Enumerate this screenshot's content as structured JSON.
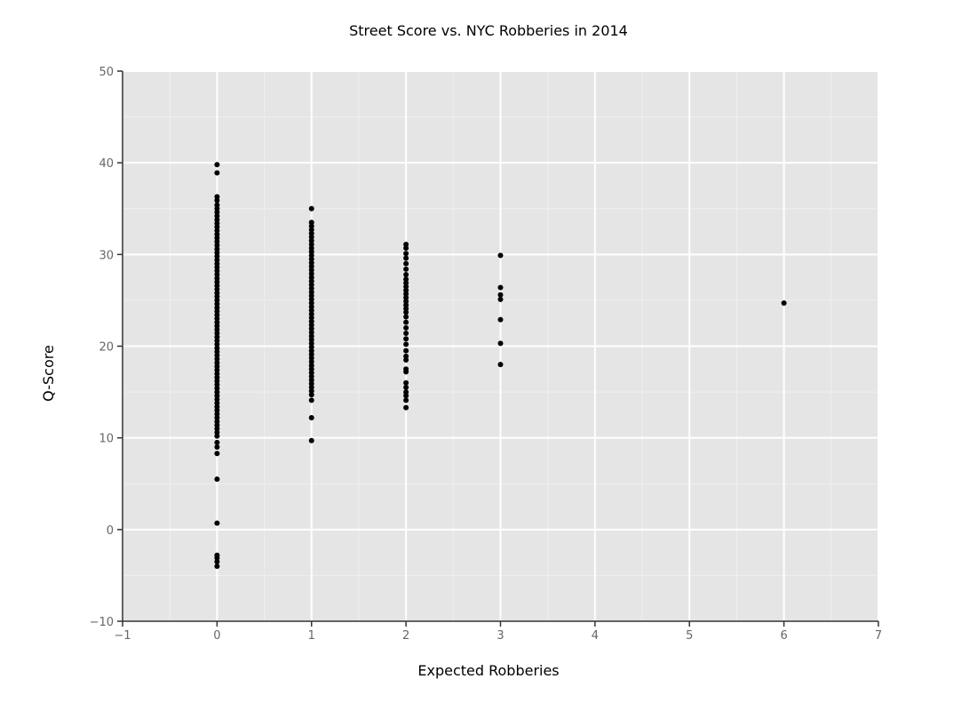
{
  "chart_data": {
    "type": "scatter",
    "title": "Street Score vs. NYC Robberies in 2014",
    "xlabel": "Expected Robberies",
    "ylabel": "Q-Score",
    "xlim": [
      -1,
      7
    ],
    "ylim": [
      -10,
      50
    ],
    "x_ticks": [
      -1,
      0,
      1,
      2,
      3,
      4,
      5,
      6,
      7
    ],
    "y_ticks": [
      -10,
      0,
      10,
      20,
      30,
      40,
      50
    ],
    "x_tick_labels": [
      "−1",
      "0",
      "1",
      "2",
      "3",
      "4",
      "5",
      "6",
      "7"
    ],
    "y_tick_labels": [
      "−10",
      "0",
      "10",
      "20",
      "30",
      "40",
      "50"
    ],
    "grid": true,
    "point_color": "#000000",
    "panel_color": "#e5e5e5",
    "points": [
      {
        "x": 0,
        "y": 39.8
      },
      {
        "x": 0,
        "y": 38.9
      },
      {
        "x": 0,
        "y": 36.3
      },
      {
        "x": 0,
        "y": 35.9
      },
      {
        "x": 0,
        "y": 35.4
      },
      {
        "x": 0,
        "y": 35.0
      },
      {
        "x": 0,
        "y": 34.6
      },
      {
        "x": 0,
        "y": 34.2
      },
      {
        "x": 0,
        "y": 33.8
      },
      {
        "x": 0,
        "y": 33.4
      },
      {
        "x": 0,
        "y": 33.0
      },
      {
        "x": 0,
        "y": 32.6
      },
      {
        "x": 0,
        "y": 32.2
      },
      {
        "x": 0,
        "y": 31.8
      },
      {
        "x": 0,
        "y": 31.4
      },
      {
        "x": 0,
        "y": 31.0
      },
      {
        "x": 0,
        "y": 30.6
      },
      {
        "x": 0,
        "y": 30.2
      },
      {
        "x": 0,
        "y": 29.8
      },
      {
        "x": 0,
        "y": 29.4
      },
      {
        "x": 0,
        "y": 29.0
      },
      {
        "x": 0,
        "y": 28.6
      },
      {
        "x": 0,
        "y": 28.2
      },
      {
        "x": 0,
        "y": 27.8
      },
      {
        "x": 0,
        "y": 27.4
      },
      {
        "x": 0,
        "y": 27.0
      },
      {
        "x": 0,
        "y": 26.6
      },
      {
        "x": 0,
        "y": 26.2
      },
      {
        "x": 0,
        "y": 25.8
      },
      {
        "x": 0,
        "y": 25.4
      },
      {
        "x": 0,
        "y": 25.0
      },
      {
        "x": 0,
        "y": 24.6
      },
      {
        "x": 0,
        "y": 24.2
      },
      {
        "x": 0,
        "y": 23.8
      },
      {
        "x": 0,
        "y": 23.4
      },
      {
        "x": 0,
        "y": 23.0
      },
      {
        "x": 0,
        "y": 22.6
      },
      {
        "x": 0,
        "y": 22.2
      },
      {
        "x": 0,
        "y": 21.8
      },
      {
        "x": 0,
        "y": 21.4
      },
      {
        "x": 0,
        "y": 21.0
      },
      {
        "x": 0,
        "y": 20.6
      },
      {
        "x": 0,
        "y": 20.2
      },
      {
        "x": 0,
        "y": 19.8
      },
      {
        "x": 0,
        "y": 19.4
      },
      {
        "x": 0,
        "y": 19.0
      },
      {
        "x": 0,
        "y": 18.6
      },
      {
        "x": 0,
        "y": 18.2
      },
      {
        "x": 0,
        "y": 17.8
      },
      {
        "x": 0,
        "y": 17.4
      },
      {
        "x": 0,
        "y": 17.0
      },
      {
        "x": 0,
        "y": 16.6
      },
      {
        "x": 0,
        "y": 16.2
      },
      {
        "x": 0,
        "y": 15.8
      },
      {
        "x": 0,
        "y": 15.4
      },
      {
        "x": 0,
        "y": 15.0
      },
      {
        "x": 0,
        "y": 14.6
      },
      {
        "x": 0,
        "y": 14.2
      },
      {
        "x": 0,
        "y": 13.8
      },
      {
        "x": 0,
        "y": 13.4
      },
      {
        "x": 0,
        "y": 13.0
      },
      {
        "x": 0,
        "y": 12.6
      },
      {
        "x": 0,
        "y": 12.2
      },
      {
        "x": 0,
        "y": 11.8
      },
      {
        "x": 0,
        "y": 11.4
      },
      {
        "x": 0,
        "y": 11.0
      },
      {
        "x": 0,
        "y": 10.6
      },
      {
        "x": 0,
        "y": 10.2
      },
      {
        "x": 0,
        "y": 9.5
      },
      {
        "x": 0,
        "y": 9.0
      },
      {
        "x": 0,
        "y": 8.3
      },
      {
        "x": 0,
        "y": 5.5
      },
      {
        "x": 0,
        "y": 0.7
      },
      {
        "x": 0,
        "y": -2.8
      },
      {
        "x": 0,
        "y": -3.1
      },
      {
        "x": 0,
        "y": -3.5
      },
      {
        "x": 0,
        "y": -4.0
      },
      {
        "x": 1,
        "y": 35.0
      },
      {
        "x": 1,
        "y": 33.5
      },
      {
        "x": 1,
        "y": 33.1
      },
      {
        "x": 1,
        "y": 32.7
      },
      {
        "x": 1,
        "y": 32.3
      },
      {
        "x": 1,
        "y": 31.9
      },
      {
        "x": 1,
        "y": 31.5
      },
      {
        "x": 1,
        "y": 31.1
      },
      {
        "x": 1,
        "y": 30.7
      },
      {
        "x": 1,
        "y": 30.3
      },
      {
        "x": 1,
        "y": 29.9
      },
      {
        "x": 1,
        "y": 29.5
      },
      {
        "x": 1,
        "y": 29.1
      },
      {
        "x": 1,
        "y": 28.7
      },
      {
        "x": 1,
        "y": 28.3
      },
      {
        "x": 1,
        "y": 27.9
      },
      {
        "x": 1,
        "y": 27.5
      },
      {
        "x": 1,
        "y": 27.1
      },
      {
        "x": 1,
        "y": 26.7
      },
      {
        "x": 1,
        "y": 26.3
      },
      {
        "x": 1,
        "y": 25.9
      },
      {
        "x": 1,
        "y": 25.5
      },
      {
        "x": 1,
        "y": 25.1
      },
      {
        "x": 1,
        "y": 24.7
      },
      {
        "x": 1,
        "y": 24.3
      },
      {
        "x": 1,
        "y": 23.9
      },
      {
        "x": 1,
        "y": 23.5
      },
      {
        "x": 1,
        "y": 23.1
      },
      {
        "x": 1,
        "y": 22.7
      },
      {
        "x": 1,
        "y": 22.3
      },
      {
        "x": 1,
        "y": 21.9
      },
      {
        "x": 1,
        "y": 21.5
      },
      {
        "x": 1,
        "y": 21.1
      },
      {
        "x": 1,
        "y": 20.7
      },
      {
        "x": 1,
        "y": 20.3
      },
      {
        "x": 1,
        "y": 19.9
      },
      {
        "x": 1,
        "y": 19.5
      },
      {
        "x": 1,
        "y": 19.1
      },
      {
        "x": 1,
        "y": 18.7
      },
      {
        "x": 1,
        "y": 18.3
      },
      {
        "x": 1,
        "y": 17.9
      },
      {
        "x": 1,
        "y": 17.5
      },
      {
        "x": 1,
        "y": 17.1
      },
      {
        "x": 1,
        "y": 16.7
      },
      {
        "x": 1,
        "y": 16.3
      },
      {
        "x": 1,
        "y": 15.9
      },
      {
        "x": 1,
        "y": 15.5
      },
      {
        "x": 1,
        "y": 15.1
      },
      {
        "x": 1,
        "y": 14.7
      },
      {
        "x": 1,
        "y": 14.1
      },
      {
        "x": 1,
        "y": 12.2
      },
      {
        "x": 1,
        "y": 9.7
      },
      {
        "x": 2,
        "y": 31.1
      },
      {
        "x": 2,
        "y": 30.7
      },
      {
        "x": 2,
        "y": 30.1
      },
      {
        "x": 2,
        "y": 29.6
      },
      {
        "x": 2,
        "y": 29.0
      },
      {
        "x": 2,
        "y": 28.4
      },
      {
        "x": 2,
        "y": 27.8
      },
      {
        "x": 2,
        "y": 27.3
      },
      {
        "x": 2,
        "y": 26.9
      },
      {
        "x": 2,
        "y": 26.5
      },
      {
        "x": 2,
        "y": 26.1
      },
      {
        "x": 2,
        "y": 25.7
      },
      {
        "x": 2,
        "y": 25.3
      },
      {
        "x": 2,
        "y": 24.9
      },
      {
        "x": 2,
        "y": 24.5
      },
      {
        "x": 2,
        "y": 24.1
      },
      {
        "x": 2,
        "y": 23.7
      },
      {
        "x": 2,
        "y": 23.2
      },
      {
        "x": 2,
        "y": 22.6
      },
      {
        "x": 2,
        "y": 22.0
      },
      {
        "x": 2,
        "y": 21.4
      },
      {
        "x": 2,
        "y": 20.8
      },
      {
        "x": 2,
        "y": 20.2
      },
      {
        "x": 2,
        "y": 19.5
      },
      {
        "x": 2,
        "y": 18.9
      },
      {
        "x": 2,
        "y": 18.5
      },
      {
        "x": 2,
        "y": 17.5
      },
      {
        "x": 2,
        "y": 17.2
      },
      {
        "x": 2,
        "y": 16.0
      },
      {
        "x": 2,
        "y": 15.5
      },
      {
        "x": 2,
        "y": 15.0
      },
      {
        "x": 2,
        "y": 14.6
      },
      {
        "x": 2,
        "y": 14.1
      },
      {
        "x": 2,
        "y": 13.3
      },
      {
        "x": 3,
        "y": 29.9
      },
      {
        "x": 3,
        "y": 26.4
      },
      {
        "x": 3,
        "y": 25.6
      },
      {
        "x": 3,
        "y": 25.1
      },
      {
        "x": 3,
        "y": 22.9
      },
      {
        "x": 3,
        "y": 20.3
      },
      {
        "x": 3,
        "y": 18.0
      },
      {
        "x": 6,
        "y": 24.7
      }
    ]
  }
}
